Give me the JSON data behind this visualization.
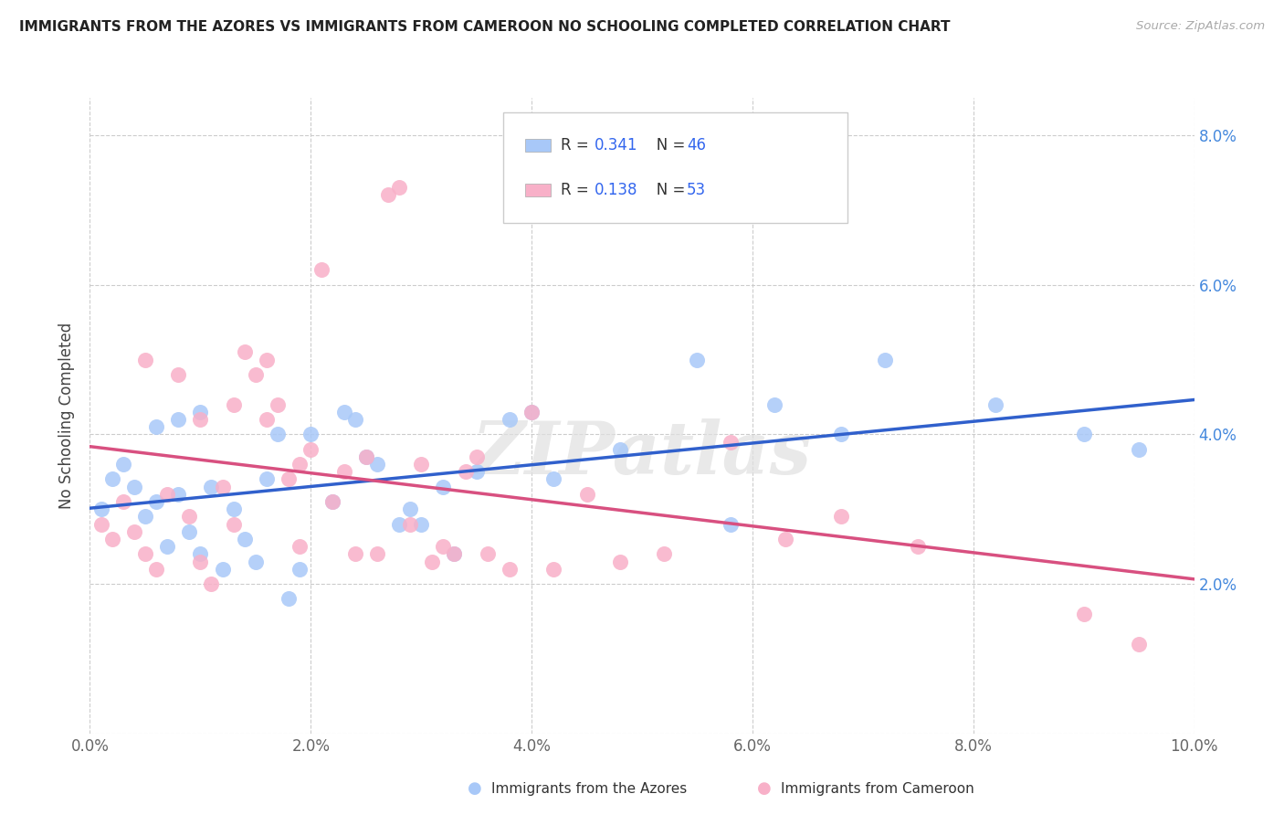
{
  "title": "IMMIGRANTS FROM THE AZORES VS IMMIGRANTS FROM CAMEROON NO SCHOOLING COMPLETED CORRELATION CHART",
  "source": "Source: ZipAtlas.com",
  "ylabel": "No Schooling Completed",
  "xlim": [
    0.0,
    0.1
  ],
  "ylim": [
    0.0,
    0.085
  ],
  "xticks": [
    0.0,
    0.02,
    0.04,
    0.06,
    0.08,
    0.1
  ],
  "yticks": [
    0.0,
    0.02,
    0.04,
    0.06,
    0.08
  ],
  "xticklabels": [
    "0.0%",
    "2.0%",
    "4.0%",
    "6.0%",
    "8.0%",
    "10.0%"
  ],
  "yticklabels_right": [
    "",
    "2.0%",
    "4.0%",
    "6.0%",
    "8.0%"
  ],
  "color_azores": "#a8c8f8",
  "color_cameroon": "#f8b0c8",
  "line_color_azores": "#3060cc",
  "line_color_cameroon": "#d85080",
  "watermark": "ZIPatlas",
  "background_color": "#ffffff",
  "legend_R_azores": "0.341",
  "legend_N_azores": "46",
  "legend_R_cameroon": "0.138",
  "legend_N_cameroon": "53",
  "azores_x": [
    0.001,
    0.002,
    0.003,
    0.004,
    0.005,
    0.006,
    0.006,
    0.007,
    0.008,
    0.008,
    0.009,
    0.01,
    0.01,
    0.011,
    0.012,
    0.013,
    0.014,
    0.015,
    0.016,
    0.017,
    0.018,
    0.019,
    0.02,
    0.022,
    0.023,
    0.024,
    0.025,
    0.026,
    0.028,
    0.029,
    0.03,
    0.032,
    0.033,
    0.035,
    0.038,
    0.04,
    0.042,
    0.048,
    0.055,
    0.058,
    0.062,
    0.068,
    0.072,
    0.082,
    0.09,
    0.095
  ],
  "azores_y": [
    0.03,
    0.034,
    0.036,
    0.033,
    0.029,
    0.031,
    0.041,
    0.025,
    0.032,
    0.042,
    0.027,
    0.024,
    0.043,
    0.033,
    0.022,
    0.03,
    0.026,
    0.023,
    0.034,
    0.04,
    0.018,
    0.022,
    0.04,
    0.031,
    0.043,
    0.042,
    0.037,
    0.036,
    0.028,
    0.03,
    0.028,
    0.033,
    0.024,
    0.035,
    0.042,
    0.043,
    0.034,
    0.038,
    0.05,
    0.028,
    0.044,
    0.04,
    0.05,
    0.044,
    0.04,
    0.038
  ],
  "cameroon_x": [
    0.001,
    0.002,
    0.003,
    0.004,
    0.005,
    0.005,
    0.006,
    0.007,
    0.008,
    0.009,
    0.01,
    0.01,
    0.011,
    0.012,
    0.013,
    0.013,
    0.014,
    0.015,
    0.016,
    0.016,
    0.017,
    0.018,
    0.019,
    0.019,
    0.02,
    0.021,
    0.022,
    0.023,
    0.024,
    0.025,
    0.026,
    0.027,
    0.028,
    0.029,
    0.03,
    0.031,
    0.032,
    0.033,
    0.034,
    0.035,
    0.036,
    0.038,
    0.04,
    0.042,
    0.045,
    0.048,
    0.052,
    0.058,
    0.063,
    0.068,
    0.075,
    0.09,
    0.095
  ],
  "cameroon_y": [
    0.028,
    0.026,
    0.031,
    0.027,
    0.024,
    0.05,
    0.022,
    0.032,
    0.048,
    0.029,
    0.023,
    0.042,
    0.02,
    0.033,
    0.028,
    0.044,
    0.051,
    0.048,
    0.042,
    0.05,
    0.044,
    0.034,
    0.025,
    0.036,
    0.038,
    0.062,
    0.031,
    0.035,
    0.024,
    0.037,
    0.024,
    0.072,
    0.073,
    0.028,
    0.036,
    0.023,
    0.025,
    0.024,
    0.035,
    0.037,
    0.024,
    0.022,
    0.043,
    0.022,
    0.032,
    0.023,
    0.024,
    0.039,
    0.026,
    0.029,
    0.025,
    0.016,
    0.012
  ]
}
